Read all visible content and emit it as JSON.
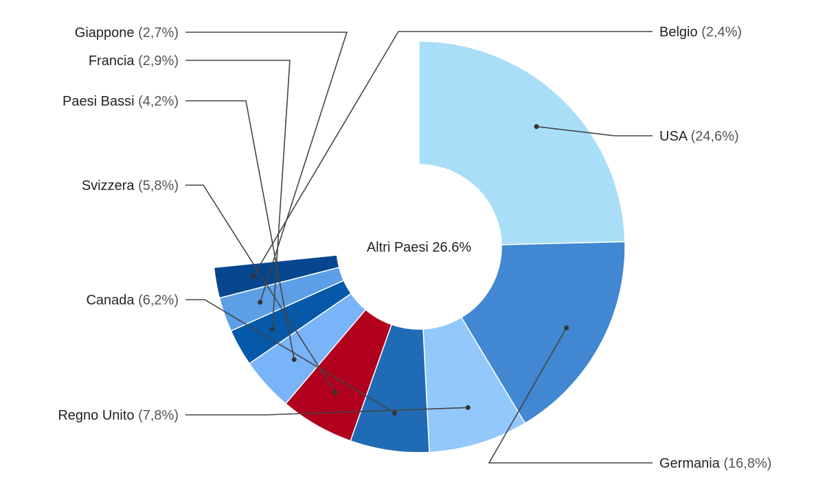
{
  "chart_data": {
    "type": "pie",
    "variant": "donut",
    "center_label": "Altri Paesi 26.6%",
    "slices": [
      {
        "name": "USA",
        "display_value": "(24,6%)",
        "value": 24.6,
        "color": "#a8def8",
        "side": "right"
      },
      {
        "name": "Germania",
        "display_value": "(16,8%)",
        "value": 16.8,
        "color": "#4187d2",
        "side": "right"
      },
      {
        "name": "Regno Unito",
        "display_value": "(7,8%)",
        "value": 7.8,
        "color": "#92c8fb",
        "side": "left"
      },
      {
        "name": "Canada",
        "display_value": "(6,2%)",
        "value": 6.2,
        "color": "#1f6bb6",
        "side": "left"
      },
      {
        "name": "Svizzera",
        "display_value": "(5,8%)",
        "value": 5.8,
        "color": "#b0001e",
        "side": "left"
      },
      {
        "name": "Paesi Bassi",
        "display_value": "(4,2%)",
        "value": 4.2,
        "color": "#79b3f8",
        "side": "left"
      },
      {
        "name": "Francia",
        "display_value": "(2,9%)",
        "value": 2.9,
        "color": "#0559a8",
        "side": "left"
      },
      {
        "name": "Giappone",
        "display_value": "(2,7%)",
        "value": 2.7,
        "color": "#5c9fe6",
        "side": "left"
      },
      {
        "name": "Belgio",
        "display_value": "(2,4%)",
        "value": 2.4,
        "color": "#05468e",
        "side": "right"
      }
    ]
  }
}
